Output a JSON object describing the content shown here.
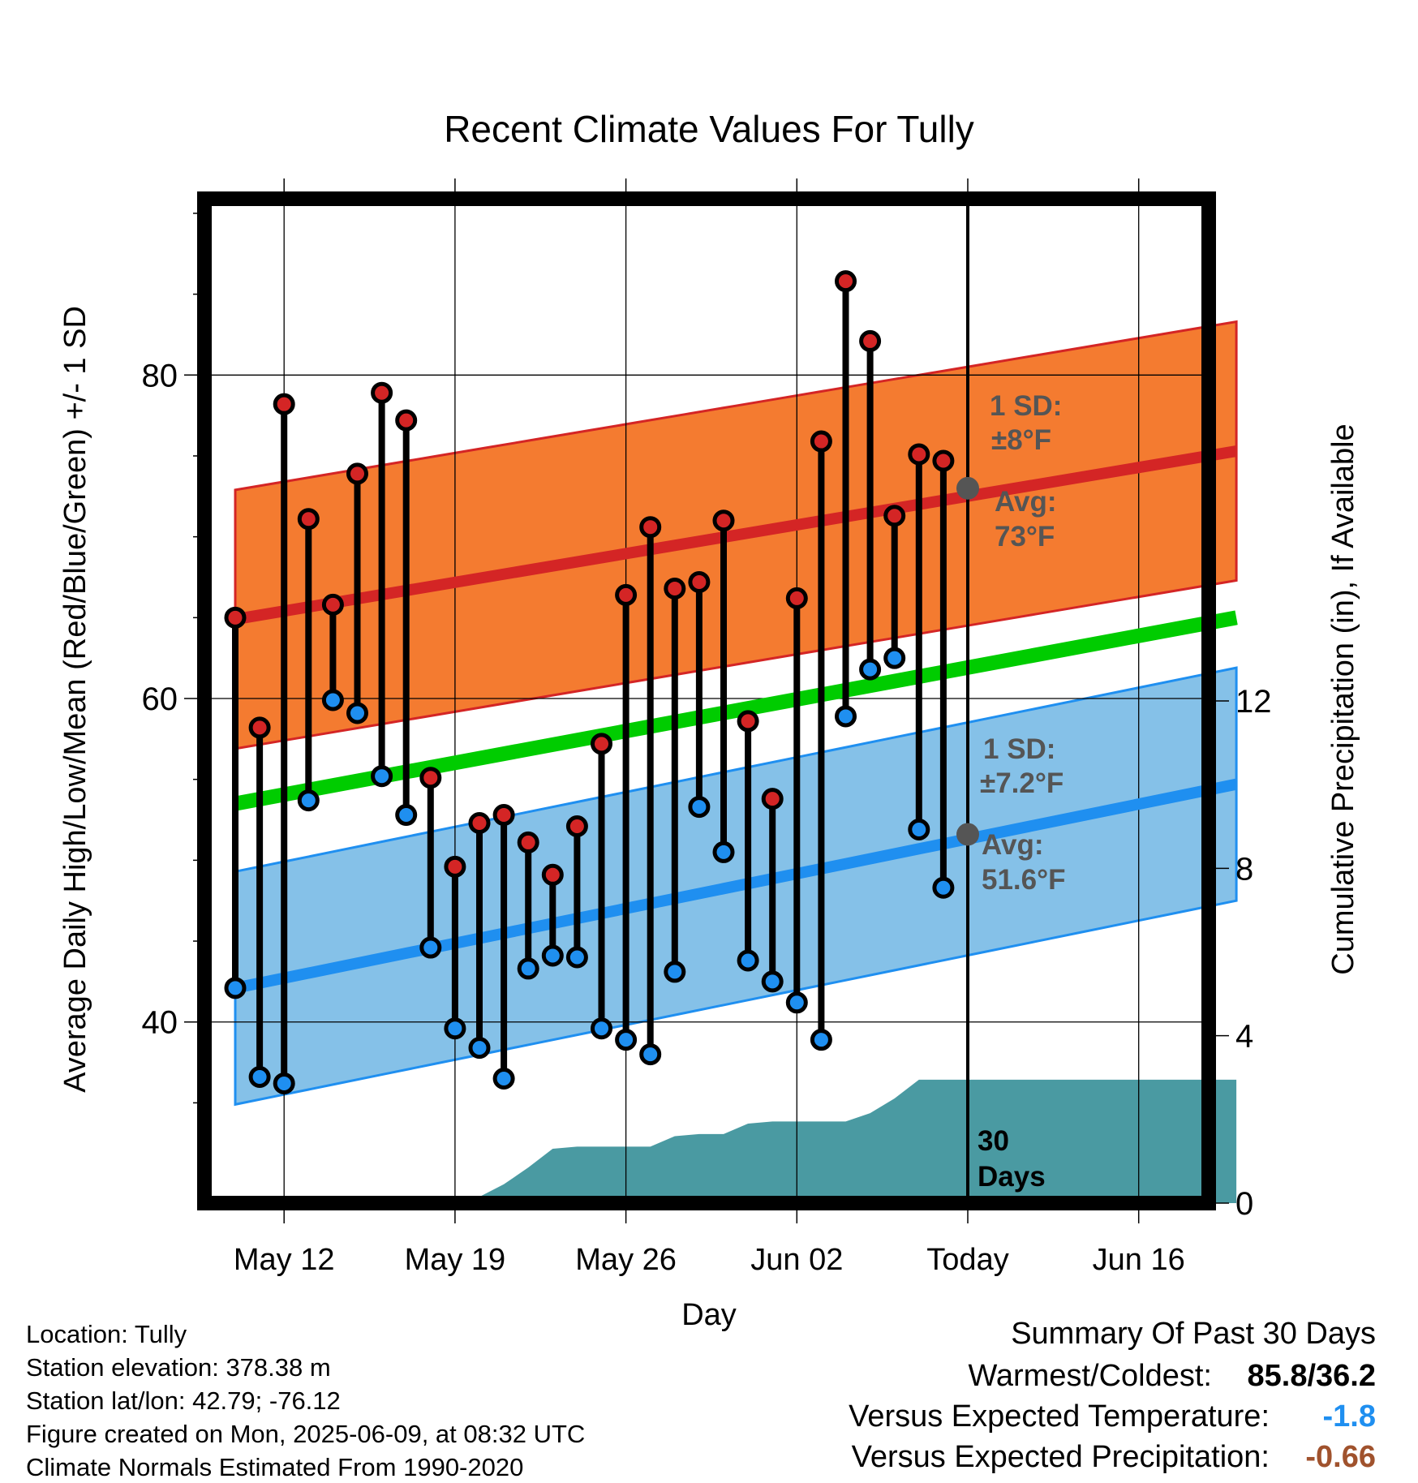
{
  "chart_data": {
    "type": "line",
    "title": "Recent Climate Values For Tully",
    "xlabel": "Day",
    "ylabel_left": "Average Daily High/Low/Mean (Red/Blue/Green) +/- 1 SD",
    "ylabel_right": "Cumulative Precipitation (in), If Available",
    "x_tick_labels": [
      "May 12",
      "May 19",
      "May 26",
      "Jun 02",
      "Today",
      "Jun 16"
    ],
    "y_left_ticks": [
      "40",
      "60",
      "80"
    ],
    "y_right_ticks": [
      "0",
      "4",
      "8",
      "12"
    ],
    "ylim_left": [
      28.8,
      90.9
    ],
    "ylim_right": [
      0,
      24
    ],
    "daily": {
      "dates": [
        "2025-05-10",
        "2025-05-11",
        "2025-05-12",
        "2025-05-13",
        "2025-05-14",
        "2025-05-15",
        "2025-05-16",
        "2025-05-17",
        "2025-05-18",
        "2025-05-19",
        "2025-05-20",
        "2025-05-21",
        "2025-05-22",
        "2025-05-23",
        "2025-05-24",
        "2025-05-25",
        "2025-05-26",
        "2025-05-27",
        "2025-05-28",
        "2025-05-29",
        "2025-05-30",
        "2025-05-31",
        "2025-06-01",
        "2025-06-02",
        "2025-06-03",
        "2025-06-04",
        "2025-06-05",
        "2025-06-06",
        "2025-06-07",
        "2025-06-08"
      ],
      "high": [
        65,
        58.2,
        78.2,
        71.1,
        65.8,
        73.9,
        78.9,
        77.2,
        55.1,
        49.6,
        52.3,
        52.8,
        51.1,
        49.1,
        52.1,
        57.2,
        66.4,
        70.6,
        66.8,
        67.2,
        71,
        58.6,
        53.8,
        66.2,
        75.9,
        85.8,
        82.1,
        71.3,
        75.1,
        74.7
      ],
      "low": [
        42.1,
        36.6,
        36.2,
        53.7,
        59.9,
        59.1,
        55.2,
        52.8,
        44.6,
        39.6,
        38.4,
        36.5,
        43.3,
        44.1,
        44,
        39.6,
        38.9,
        38,
        43.1,
        53.3,
        50.5,
        43.8,
        42.5,
        41.2,
        38.9,
        58.9,
        61.8,
        62.5,
        51.9,
        48.3
      ]
    },
    "normals": {
      "x_range": [
        "2025-05-10",
        "2025-06-20"
      ],
      "mean_high": [
        64.9,
        75.3
      ],
      "high_sd": 8,
      "mean_low": [
        42.1,
        54.7
      ],
      "low_sd": 7.2,
      "mean": [
        53.5,
        65
      ]
    },
    "precip_cumulative": {
      "dates": [
        "2025-05-10",
        "2025-05-16",
        "2025-05-18",
        "2025-05-19",
        "2025-05-20",
        "2025-05-21",
        "2025-05-22",
        "2025-05-23",
        "2025-05-24",
        "2025-05-25",
        "2025-05-26",
        "2025-05-27",
        "2025-05-28",
        "2025-05-29",
        "2025-05-30",
        "2025-05-31",
        "2025-06-01",
        "2025-06-02",
        "2025-06-03",
        "2025-06-04",
        "2025-06-05",
        "2025-06-06",
        "2025-06-07",
        "2025-06-08",
        "2025-06-20"
      ],
      "values": [
        0,
        0,
        0.15,
        0.15,
        0.15,
        0.45,
        0.85,
        1.3,
        1.35,
        1.35,
        1.35,
        1.35,
        1.6,
        1.65,
        1.65,
        1.9,
        1.95,
        1.95,
        1.95,
        1.95,
        2.15,
        2.5,
        2.95,
        2.95,
        2.95
      ]
    },
    "annotations": {
      "high_sd_line1": "1 SD:",
      "high_sd_line2": "±8°F",
      "high_avg_line1": "Avg:",
      "high_avg_line2": "73°F",
      "high_avg_value": 73,
      "low_sd_line1": "1 SD:",
      "low_sd_line2": "±7.2°F",
      "low_avg_line1": "Avg:",
      "low_avg_line2": "51.6°F",
      "low_avg_value": 51.6,
      "days_line1": "30",
      "days_line2": "Days"
    },
    "grid": true,
    "colors": {
      "high_band": "#f47b30",
      "high_line": "#d42525",
      "low_band": "#85c1e8",
      "low_line": "#1f8ff0",
      "mean_line": "#00cc00",
      "precip_fill": "#4a9aa2",
      "high_marker": "#d42525",
      "low_marker": "#1f8ff0",
      "avg_marker": "#555555",
      "annotation_text": "#555555",
      "temp_departure": "#1f8ff0",
      "precip_departure": "#a0522d"
    }
  },
  "footer_left": [
    "Location: Tully",
    "Station elevation: 378.38 m",
    "Station lat/lon: 42.79; -76.12",
    "Figure created on Mon, 2025-06-09, at 08:32 UTC",
    "Climate Normals Estimated From 1990-2020"
  ],
  "summary": {
    "title": "Summary Of Past 30 Days",
    "warmest_label": "Warmest/Coldest:",
    "warmest_value": "85.8/36.2",
    "temp_label": "Versus Expected Temperature:",
    "temp_value": "-1.8",
    "precip_label": "Versus Expected Precipitation:",
    "precip_value": "-0.66"
  }
}
